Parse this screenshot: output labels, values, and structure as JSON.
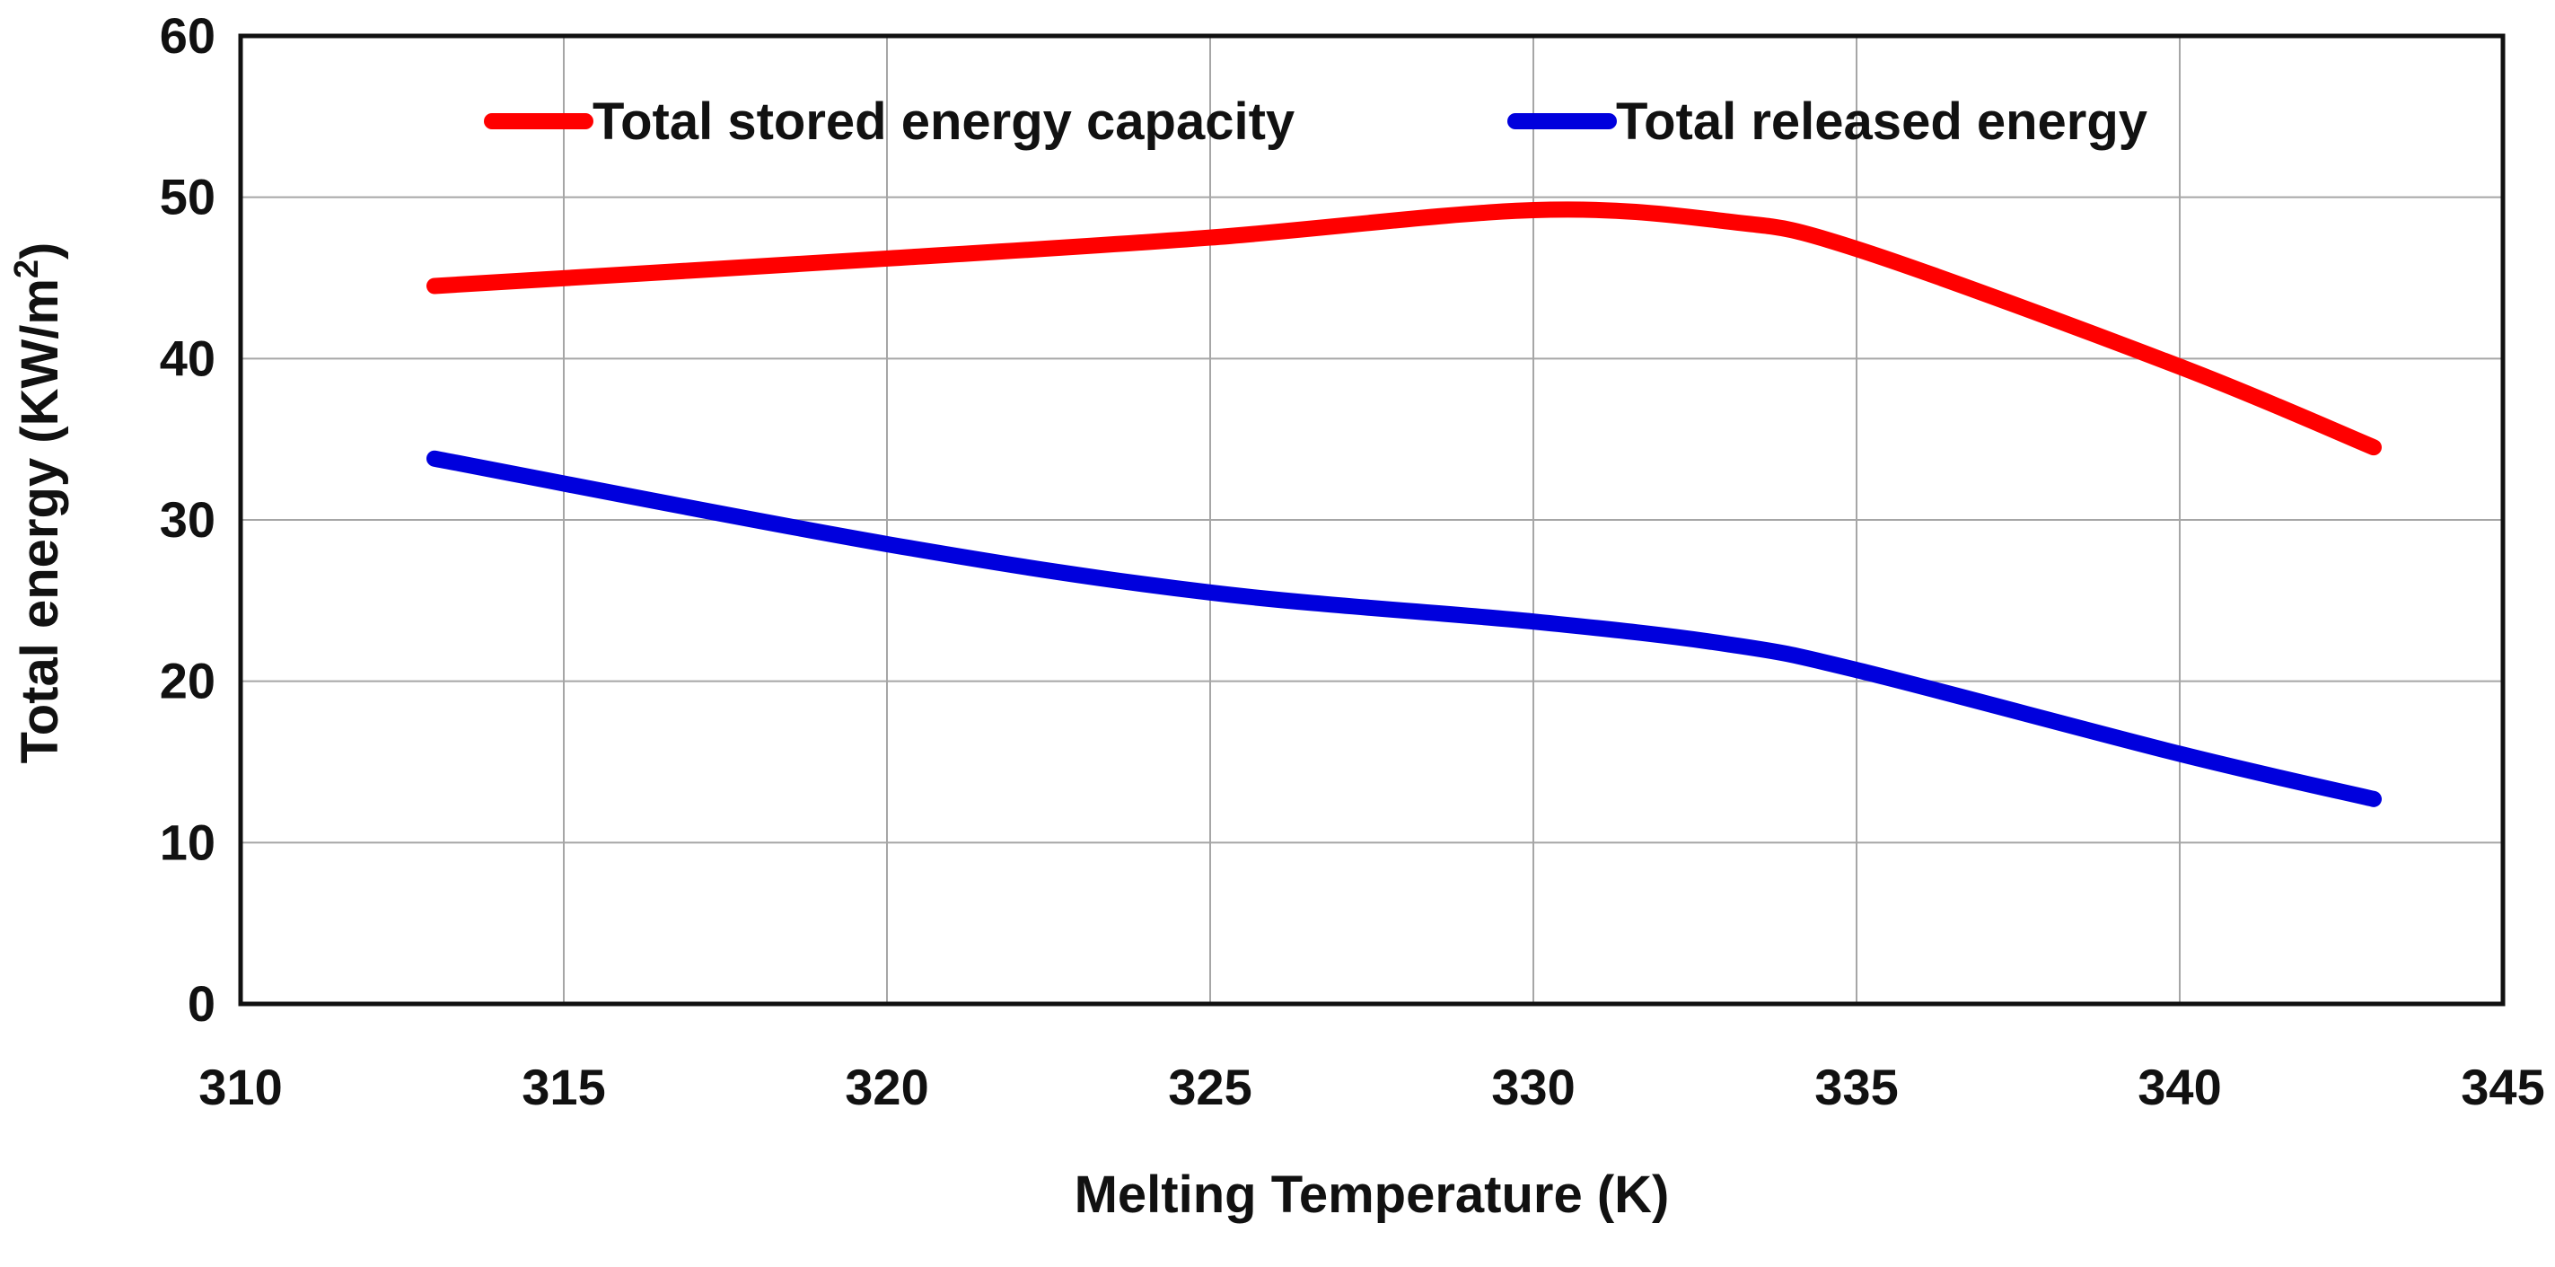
{
  "chart_data": {
    "type": "line",
    "title": "",
    "xlabel": "Melting Temperature (K)",
    "ylabel": {
      "prefix": "Total energy  (KW/m",
      "superscript": "2",
      "suffix": ")"
    },
    "xlim": [
      310,
      345
    ],
    "ylim": [
      0,
      60
    ],
    "xticks": [
      310,
      315,
      320,
      325,
      330,
      335,
      340,
      345
    ],
    "yticks": [
      0,
      10,
      20,
      30,
      40,
      50,
      60
    ],
    "grid": true,
    "legend_position": "top",
    "x": [
      313,
      320,
      325,
      330,
      333,
      335,
      340,
      343
    ],
    "series": [
      {
        "name": "Total stored energy capacity",
        "color": "#ff0000",
        "values": [
          44.5,
          46.2,
          47.5,
          49.2,
          48.5,
          46.8,
          39.5,
          34.5
        ]
      },
      {
        "name": "Total released energy",
        "color": "#0000dd",
        "values": [
          33.8,
          28.5,
          25.5,
          23.7,
          22.3,
          20.7,
          15.5,
          12.7
        ]
      }
    ]
  }
}
